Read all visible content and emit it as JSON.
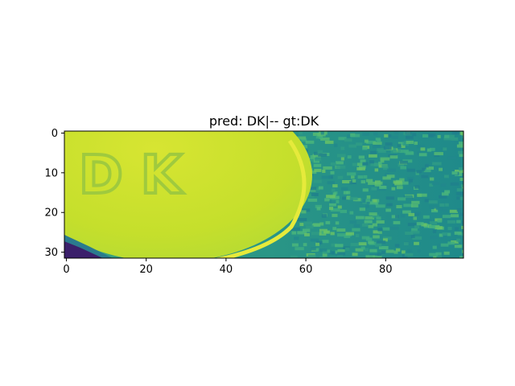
{
  "title": "pred: DK|-- gt:DK",
  "image": {
    "description_text": "DK",
    "colormap": "viridis",
    "coin_color": "#c8df2b",
    "coin_highlight": "#dbe535",
    "letter_color": "#a9cf3a",
    "background_color": "#25a484",
    "dark_corner_color": "#3b1f6b",
    "rows": 32,
    "cols": 100
  },
  "axes": {
    "x_ticks": [
      "0",
      "20",
      "40",
      "60",
      "80"
    ],
    "y_ticks": [
      "0",
      "10",
      "20",
      "30"
    ],
    "xlim": [
      -0.5,
      99.5
    ],
    "ylim": [
      31.5,
      -0.5
    ]
  }
}
